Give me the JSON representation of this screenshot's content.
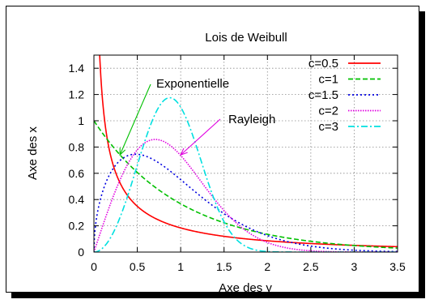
{
  "chart_data": {
    "type": "line",
    "title": "Lois de Weibull",
    "xlabel": "Axe des y",
    "ylabel": "Axe des x",
    "xlim": [
      0,
      3.5
    ],
    "ylim": [
      0,
      1.5
    ],
    "xticks": [
      "0",
      "0.5",
      "1",
      "1.5",
      "2",
      "2.5",
      "3",
      "3.5"
    ],
    "yticks": [
      "0",
      "0.2",
      "0.4",
      "0.6",
      "0.8",
      "1",
      "1.2",
      "1.4"
    ],
    "grid": true,
    "legend_position": "top-right",
    "series": [
      {
        "name": "c=0.5",
        "shape": 0.5,
        "color": "#ff0000",
        "dash": "solid"
      },
      {
        "name": "c=1",
        "shape": 1,
        "color": "#00c000",
        "dash": "dashed"
      },
      {
        "name": "c=1.5",
        "shape": 1.5,
        "color": "#0000e0",
        "dash": "dotted"
      },
      {
        "name": "c=2",
        "shape": 2,
        "color": "#e000e0",
        "dash": "fine-dotted"
      },
      {
        "name": "c=3",
        "shape": 3,
        "color": "#00e0e0",
        "dash": "dash-dot"
      }
    ],
    "annotations": [
      {
        "text": "Exponentielle",
        "target_x": 0.3,
        "target_y": 0.74,
        "color": "#00c000"
      },
      {
        "text": "Rayleigh",
        "target_x": 1.0,
        "target_y": 0.74,
        "color": "#e000e0"
      }
    ]
  }
}
